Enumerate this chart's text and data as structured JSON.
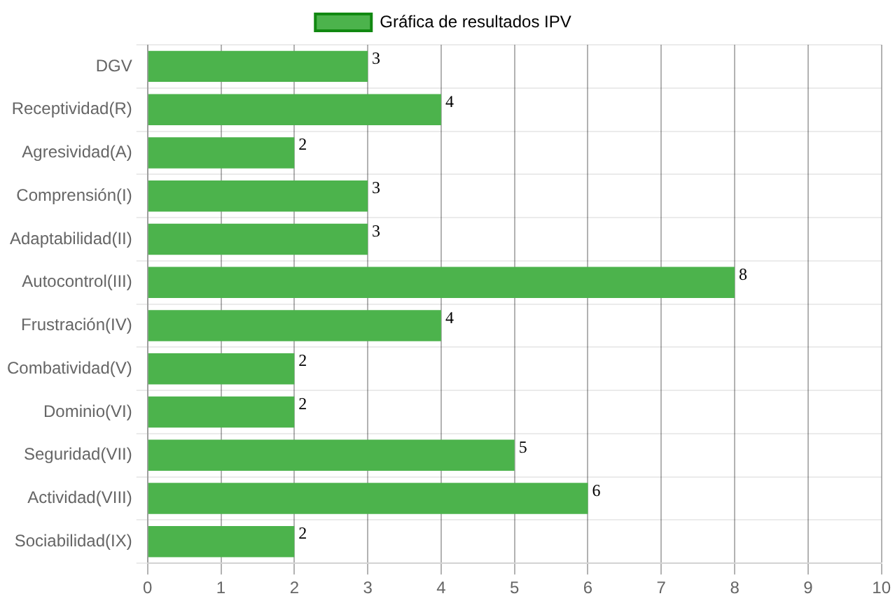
{
  "chart_data": {
    "type": "bar",
    "orientation": "horizontal",
    "categories": [
      "DGV",
      "Receptividad(R)",
      "Agresividad(A)",
      "Comprensión(I)",
      "Adaptabilidad(II)",
      "Autocontrol(III)",
      "Frustración(IV)",
      "Combatividad(V)",
      "Dominio(VI)",
      "Seguridad(VII)",
      "Actividad(VIII)",
      "Sociabilidad(IX)"
    ],
    "series": [
      {
        "name": "Gráfica de resultados IPV",
        "color": "#4cb34c",
        "values": [
          3,
          4,
          2,
          3,
          3,
          8,
          4,
          2,
          2,
          5,
          6,
          2
        ]
      }
    ],
    "xlim": [
      0,
      10
    ],
    "xticks": [
      0,
      1,
      2,
      3,
      4,
      5,
      6,
      7,
      8,
      9,
      10
    ],
    "grid": true,
    "legend": "top",
    "data_labels": true
  }
}
